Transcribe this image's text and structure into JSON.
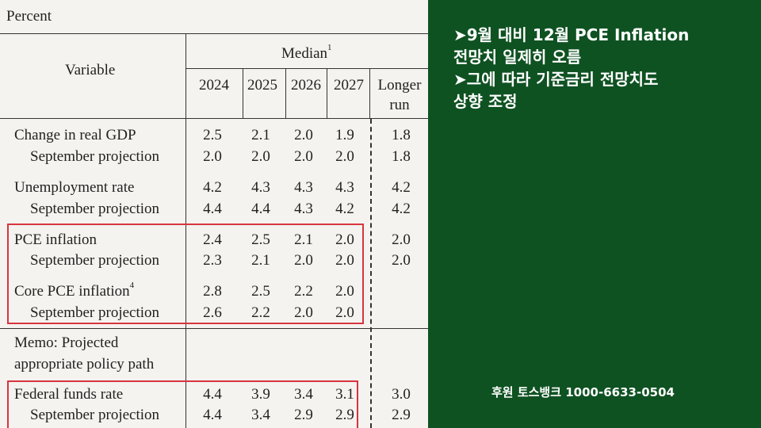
{
  "table": {
    "unit_label": "Percent",
    "variable_header": "Variable",
    "median_header": "Median",
    "median_sup": "1",
    "years": [
      "2024",
      "2025",
      "2026",
      "2027"
    ],
    "longer_run_line1": "Longer",
    "longer_run_line2": "run",
    "rows": [
      {
        "label": "Change in real GDP",
        "sup": "",
        "values": [
          "2.5",
          "2.1",
          "2.0",
          "1.9"
        ],
        "longer": "1.8"
      },
      {
        "label": "September projection",
        "sup": "",
        "values": [
          "2.0",
          "2.0",
          "2.0",
          "2.0"
        ],
        "longer": "1.8"
      },
      {
        "label": "Unemployment rate",
        "sup": "",
        "values": [
          "4.2",
          "4.3",
          "4.3",
          "4.3"
        ],
        "longer": "4.2"
      },
      {
        "label": "September projection",
        "sup": "",
        "values": [
          "4.4",
          "4.4",
          "4.3",
          "4.2"
        ],
        "longer": "4.2"
      },
      {
        "label": "PCE inflation",
        "sup": "",
        "values": [
          "2.4",
          "2.5",
          "2.1",
          "2.0"
        ],
        "longer": "2.0"
      },
      {
        "label": "September projection",
        "sup": "",
        "values": [
          "2.3",
          "2.1",
          "2.0",
          "2.0"
        ],
        "longer": "2.0"
      },
      {
        "label": "Core PCE inflation",
        "sup": "4",
        "values": [
          "2.8",
          "2.5",
          "2.2",
          "2.0"
        ],
        "longer": ""
      },
      {
        "label": "September projection",
        "sup": "",
        "values": [
          "2.6",
          "2.2",
          "2.0",
          "2.0"
        ],
        "longer": ""
      },
      {
        "label": "Federal funds rate",
        "sup": "",
        "values": [
          "4.4",
          "3.9",
          "3.4",
          "3.1"
        ],
        "longer": "3.0"
      },
      {
        "label": "September projection",
        "sup": "",
        "values": [
          "4.4",
          "3.4",
          "2.9",
          "2.9"
        ],
        "longer": "2.9"
      }
    ],
    "memo_line1": "Memo: Projected",
    "memo_line2": "appropriate policy path"
  },
  "notes": {
    "line1": "➤9월 대비 12월 PCE Inflation",
    "line2": "전망치 일제히 오름",
    "line3": "➤그에 따라 기준금리 전망치도",
    "line4": "상향 조정"
  },
  "sponsor": "후원 토스뱅크 1000-6633-0504",
  "colors": {
    "background": "#0f5222",
    "highlight_box": "#d8343f",
    "text": "#ffffff"
  }
}
